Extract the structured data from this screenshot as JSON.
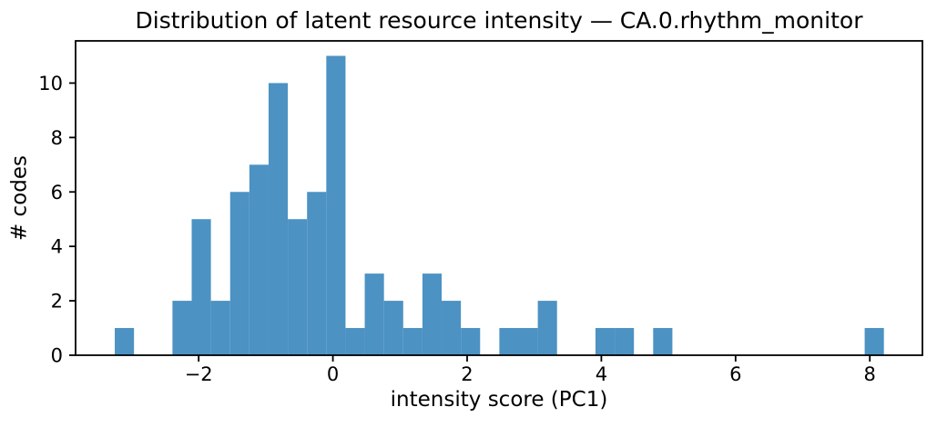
{
  "chart_data": {
    "type": "bar",
    "subtype": "histogram",
    "title": "Distribution of latent resource intensity — CA.0.rhythm_monitor",
    "xlabel": "intensity score (PC1)",
    "ylabel": "# codes",
    "bin_start": -3.25,
    "bin_width": 0.2865,
    "counts": [
      1,
      0,
      0,
      2,
      5,
      2,
      6,
      7,
      10,
      5,
      6,
      11,
      1,
      3,
      2,
      1,
      3,
      2,
      1,
      0,
      1,
      1,
      2,
      0,
      0,
      1,
      1,
      0,
      1,
      0,
      0,
      0,
      0,
      0,
      0,
      0,
      0,
      0,
      0,
      1
    ],
    "xlim": [
      -3.834,
      8.784
    ],
    "ylim": [
      0,
      11.55
    ],
    "xticks": [
      {
        "value": -2,
        "label": "−2"
      },
      {
        "value": 0,
        "label": "0"
      },
      {
        "value": 2,
        "label": "2"
      },
      {
        "value": 4,
        "label": "4"
      },
      {
        "value": 6,
        "label": "6"
      },
      {
        "value": 8,
        "label": "8"
      }
    ],
    "yticks": [
      {
        "value": 0,
        "label": "0"
      },
      {
        "value": 2,
        "label": "2"
      },
      {
        "value": 4,
        "label": "4"
      },
      {
        "value": 6,
        "label": "6"
      },
      {
        "value": 8,
        "label": "8"
      },
      {
        "value": 10,
        "label": "10"
      }
    ],
    "bar_color": "#4c92c3",
    "axis_color": "#000000",
    "background": "#ffffff",
    "grid": false,
    "legend": null
  }
}
